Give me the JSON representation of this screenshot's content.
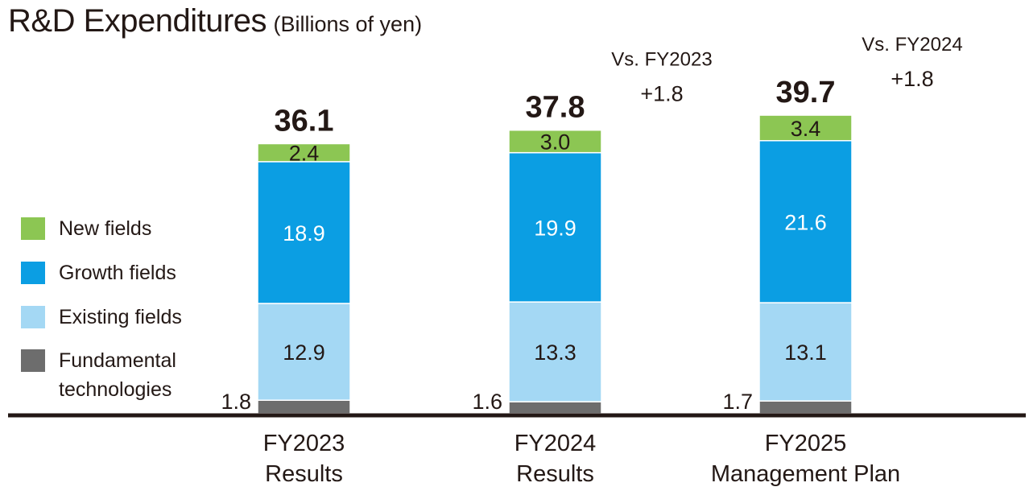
{
  "title": {
    "main": "R&D Expenditures",
    "sub": "(Billions of yen)"
  },
  "colors": {
    "new_fields": "#8cc653",
    "growth_fields": "#0b9ee3",
    "existing_fields": "#a4d8f4",
    "fundamental": "#6d6d6d",
    "axis": "#231815"
  },
  "legend": [
    {
      "key": "new_fields",
      "label": "New fields"
    },
    {
      "key": "growth_fields",
      "label": "Growth fields"
    },
    {
      "key": "existing_fields",
      "label": "Existing fields"
    },
    {
      "key": "fundamental",
      "label": "Fundamental\ntechnologies"
    }
  ],
  "chart_data": {
    "type": "bar",
    "stacked": true,
    "title": "R&D Expenditures",
    "unit": "(Billions of yen)",
    "categories": [
      "FY2023\nResults",
      "FY2024\nResults",
      "FY2025\nManagement Plan"
    ],
    "series": [
      {
        "name": "Fundamental technologies",
        "key": "fundamental",
        "values": [
          1.8,
          1.6,
          1.7
        ]
      },
      {
        "name": "Existing fields",
        "key": "existing_fields",
        "values": [
          12.9,
          13.3,
          13.1
        ]
      },
      {
        "name": "Growth fields",
        "key": "growth_fields",
        "values": [
          18.9,
          19.9,
          21.6
        ]
      },
      {
        "name": "New fields",
        "key": "new_fields",
        "values": [
          2.4,
          3.0,
          3.4
        ]
      }
    ],
    "totals": [
      "36.1",
      "37.8",
      "39.7"
    ],
    "value_labels": [
      [
        "1.8",
        "12.9",
        "18.9",
        "2.4"
      ],
      [
        "1.6",
        "13.3",
        "19.9",
        "3.0"
      ],
      [
        "1.7",
        "13.1",
        "21.6",
        "3.4"
      ]
    ],
    "comparisons": [
      null,
      {
        "label": "Vs. FY2023",
        "value": "+1.8"
      },
      {
        "label": "Vs. FY2024",
        "value": "+1.8"
      }
    ],
    "ylim": [
      0,
      39.7
    ],
    "grid": false,
    "legend_position": "left"
  }
}
